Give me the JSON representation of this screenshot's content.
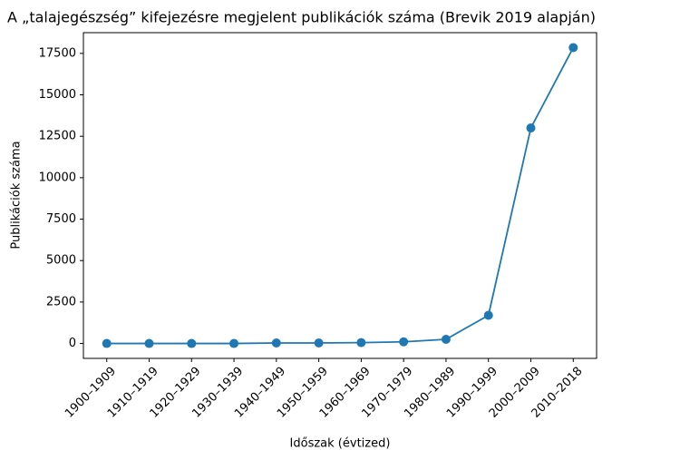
{
  "chart_data": {
    "type": "line",
    "title": "A „talajegészség” kifejezésre megjelent publikációk száma (Brevik 2019 alapján)",
    "x_label": "Időszak (évtized)",
    "y_label": "Publikációk száma",
    "categories": [
      "1900–1909",
      "1910–1919",
      "1920–1929",
      "1930–1939",
      "1940–1949",
      "1950–1959",
      "1960–1969",
      "1970–1979",
      "1980–1989",
      "1990–1999",
      "2000–2009",
      "2010–2018"
    ],
    "series": [
      {
        "color": "#1f77b4",
        "values": [
          0,
          0,
          0,
          0,
          30,
          30,
          50,
          100,
          250,
          1700,
          13000,
          17850
        ]
      }
    ],
    "ylim": [
      -900,
      18750
    ],
    "yticks": [
      0,
      2500,
      5000,
      7500,
      10000,
      12500,
      15000,
      17500
    ]
  }
}
